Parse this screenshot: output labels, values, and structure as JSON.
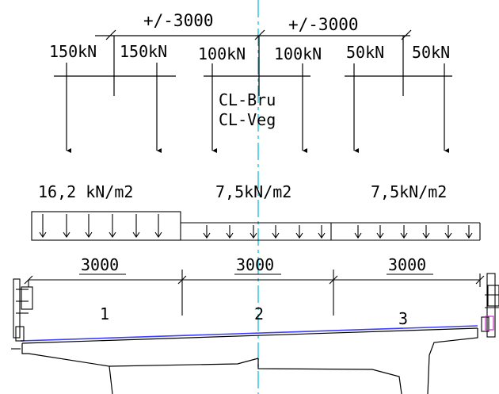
{
  "axle_spacing": [
    "+/-3000",
    "+/-3000"
  ],
  "axle_loads": [
    "150kN",
    "150kN",
    "100kN",
    "100kN",
    "50kN",
    "50kN"
  ],
  "centerline_labels": [
    "CL-Bru",
    "CL-Veg"
  ],
  "uniform_loads": [
    "16,2 kN/m2",
    "7,5kN/m2",
    "7,5kN/m2"
  ],
  "lane_widths": [
    "3000",
    "3000",
    "3000"
  ],
  "lane_numbers": [
    "1",
    "2",
    "3"
  ],
  "colors": {
    "centerline": "#33c6e0",
    "deck_top": "#3c3cff",
    "railing_detail": "#cc33cc"
  }
}
